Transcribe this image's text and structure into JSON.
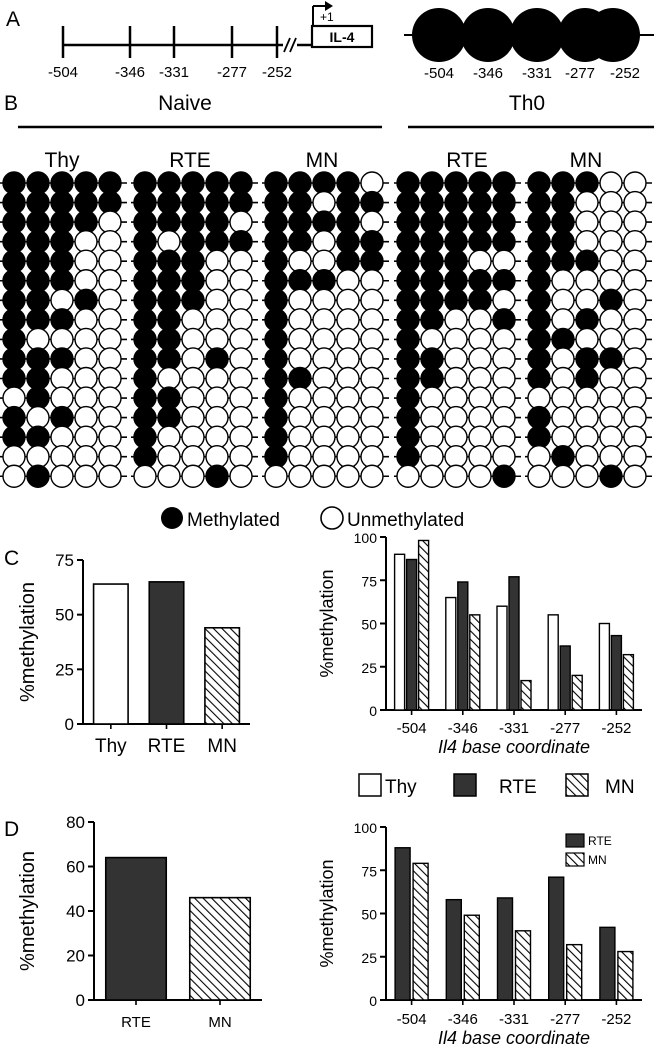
{
  "panel_labels": {
    "a": "A",
    "b": "B",
    "c": "C",
    "d": "D"
  },
  "panel_a": {
    "sites": [
      "-504",
      "-346",
      "-331",
      "-277",
      "-252"
    ],
    "tss_label": "+1",
    "gene_label": "IL-4"
  },
  "panel_b": {
    "group_naive": "Naive",
    "group_th0": "Th0",
    "legend": {
      "methylated": "Methylated",
      "unmethylated": "Unmethylated"
    },
    "datasets": [
      {
        "label": "Thy",
        "rows": [
          "11111",
          "11111",
          "11110",
          "11100",
          "11100",
          "11100",
          "11010",
          "11100",
          "10000",
          "11100",
          "11000",
          "01000",
          "10100",
          "11000",
          "00000",
          "01000"
        ]
      },
      {
        "label": "RTE",
        "rows": [
          "11111",
          "11111",
          "11110",
          "10111",
          "11100",
          "11100",
          "11100",
          "11000",
          "11000",
          "11010",
          "10000",
          "11000",
          "11000",
          "10000",
          "10000",
          "00010"
        ]
      },
      {
        "label": "MN",
        "rows": [
          "11110",
          "11011",
          "11110",
          "11011",
          "10011",
          "11100",
          "10000",
          "10000",
          "10000",
          "10000",
          "11000",
          "10000",
          "10000",
          "10000",
          "10000",
          "00000"
        ]
      },
      {
        "label": "RTE",
        "rows": [
          "11111",
          "11111",
          "11111",
          "11111",
          "11100",
          "11111",
          "11110",
          "11001",
          "10000",
          "11000",
          "11000",
          "10000",
          "10000",
          "10000",
          "10000",
          "00001"
        ]
      },
      {
        "label": "MN",
        "rows": [
          "11100",
          "11000",
          "11000",
          "11000",
          "11100",
          "10000",
          "10010",
          "10100",
          "11000",
          "10110",
          "10100",
          "00000",
          "10000",
          "10000",
          "01000",
          "00010"
        ]
      }
    ]
  },
  "panel_c": {
    "legend": [
      "Thy",
      "RTE",
      "MN"
    ],
    "left": {
      "ylabel": "%methylation",
      "ylim": [
        0,
        75
      ],
      "yticks": [
        "0",
        "25",
        "50",
        "75"
      ],
      "categories": [
        "Thy",
        "RTE",
        "MN"
      ]
    },
    "right": {
      "ylabel": "%methylation",
      "xlabel": "Il4 base coordinate",
      "ylim": [
        0,
        100
      ],
      "yticks": [
        "0",
        "25",
        "50",
        "75",
        "100"
      ],
      "categories": [
        "-504",
        "-346",
        "-331",
        "-277",
        "-252"
      ]
    }
  },
  "panel_d": {
    "left": {
      "ylabel": "%methylation",
      "ylim": [
        0,
        80
      ],
      "yticks": [
        "0",
        "20",
        "40",
        "60",
        "80"
      ],
      "categories": [
        "RTE",
        "MN"
      ]
    },
    "right": {
      "ylabel": "%methylation",
      "xlabel": "Il4 base coordinate",
      "ylim": [
        0,
        100
      ],
      "yticks": [
        "0",
        "25",
        "50",
        "75",
        "100"
      ],
      "categories": [
        "-504",
        "-346",
        "-331",
        "-277",
        "-252"
      ],
      "legend": [
        "RTE",
        "MN"
      ]
    }
  },
  "chart_data": [
    {
      "type": "bar",
      "categories": [
        "Thy",
        "RTE",
        "MN"
      ],
      "values": [
        64,
        65,
        44
      ],
      "ylabel": "%methylation",
      "ylim": [
        0,
        75
      ]
    },
    {
      "type": "bar",
      "categories": [
        "-504",
        "-346",
        "-331",
        "-277",
        "-252"
      ],
      "series": [
        {
          "name": "Thy",
          "values": [
            90,
            65,
            60,
            55,
            50
          ]
        },
        {
          "name": "RTE",
          "values": [
            87,
            74,
            77,
            37,
            43
          ]
        },
        {
          "name": "MN",
          "values": [
            98,
            55,
            17,
            20,
            32
          ]
        }
      ],
      "xlabel": "Il4 base coordinate",
      "ylabel": "%methylation",
      "ylim": [
        0,
        100
      ],
      "legend": "bottom"
    },
    {
      "type": "bar",
      "categories": [
        "RTE",
        "MN"
      ],
      "values": [
        64,
        46
      ],
      "ylabel": "%methylation",
      "ylim": [
        0,
        80
      ]
    },
    {
      "type": "bar",
      "categories": [
        "-504",
        "-346",
        "-331",
        "-277",
        "-252"
      ],
      "series": [
        {
          "name": "RTE",
          "values": [
            88,
            58,
            59,
            71,
            42
          ]
        },
        {
          "name": "MN",
          "values": [
            79,
            49,
            40,
            32,
            28
          ]
        }
      ],
      "xlabel": "Il4 base coordinate",
      "ylabel": "%methylation",
      "ylim": [
        0,
        100
      ],
      "legend": "top-right"
    }
  ]
}
